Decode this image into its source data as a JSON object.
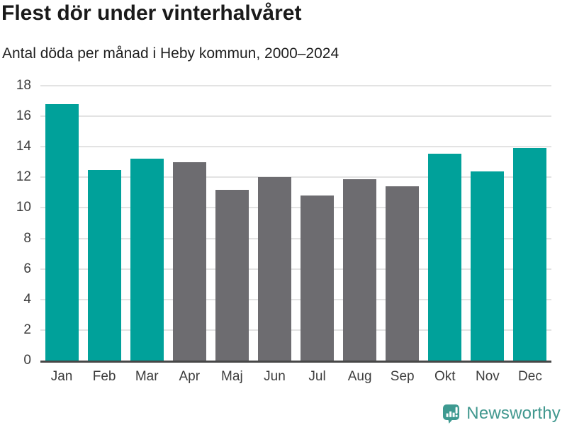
{
  "chart_data": {
    "type": "bar",
    "title": "Flest dör under vinterhalvåret",
    "subtitle": "Antal döda per månad i Heby kommun, 2000–2024",
    "categories": [
      "Jan",
      "Feb",
      "Mar",
      "Apr",
      "Maj",
      "Jun",
      "Jul",
      "Aug",
      "Sep",
      "Okt",
      "Nov",
      "Dec"
    ],
    "values": [
      16.8,
      12.5,
      13.2,
      13.0,
      11.2,
      12.0,
      10.8,
      11.9,
      11.4,
      13.55,
      12.4,
      13.9
    ],
    "bar_colors": [
      "winter",
      "winter",
      "winter",
      "summer",
      "summer",
      "summer",
      "summer",
      "summer",
      "summer",
      "winter",
      "winter",
      "winter"
    ],
    "palette": {
      "winter": "#00a19a",
      "summer": "#6d6c70"
    },
    "xlabel": "",
    "ylabel": "",
    "ylim": [
      0,
      18
    ],
    "yticks": [
      0,
      2,
      4,
      6,
      8,
      10,
      12,
      14,
      16,
      18
    ],
    "grid": "horizontal",
    "legend": "none",
    "gridline_color": "#e3e3e3",
    "axis_line_color": "#474747",
    "tick_label_color": "#3d3d3d"
  },
  "branding": {
    "logo_text": "Newsworthy",
    "logo_color": "#41988f",
    "icon": "newsworthy-speech-bubble-bar-chart-icon"
  }
}
